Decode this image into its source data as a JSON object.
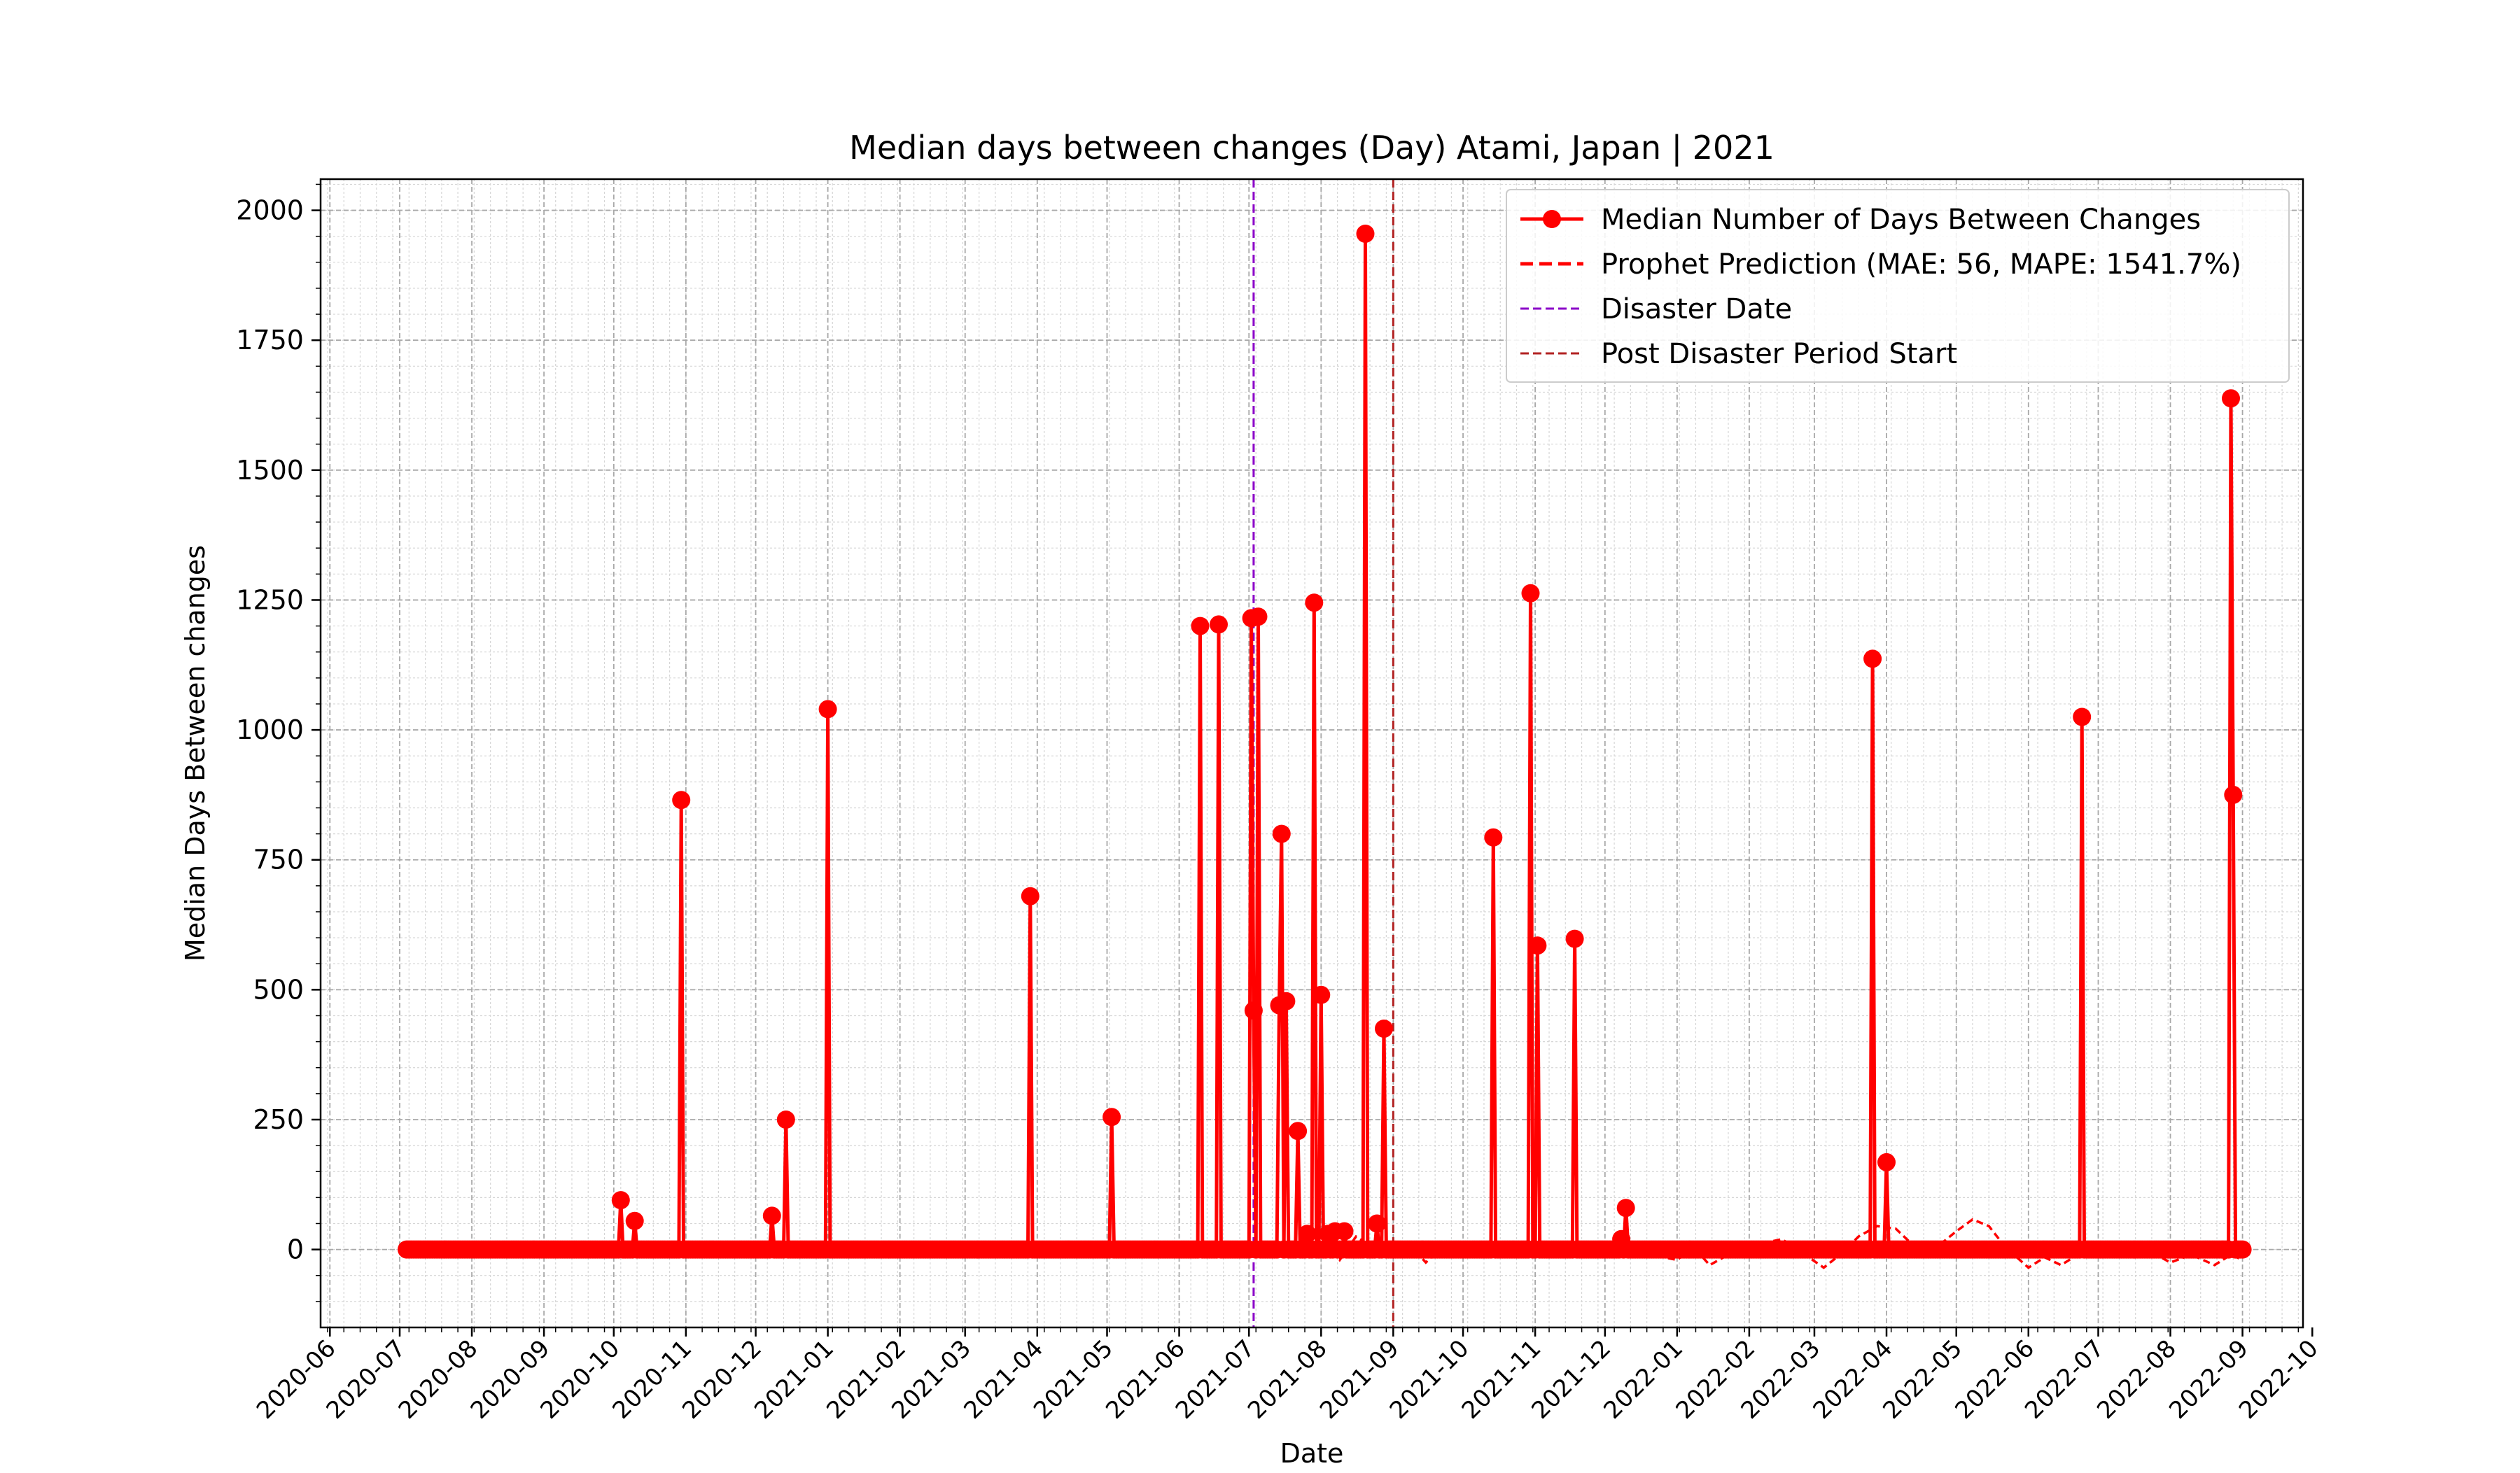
{
  "chart_data": {
    "type": "line",
    "title": "Median days between changes (Day) Atami, Japan | 2021",
    "xlabel": "Date",
    "ylabel": "Median Days Between changes",
    "xlim": [
      "2020-05-28",
      "2022-09-27"
    ],
    "ylim": [
      -150,
      2060
    ],
    "grid": true,
    "legend_position": "top-right",
    "x_ticks": [
      "2020-06",
      "2020-07",
      "2020-08",
      "2020-09",
      "2020-10",
      "2020-11",
      "2020-12",
      "2021-01",
      "2021-02",
      "2021-03",
      "2021-04",
      "2021-05",
      "2021-06",
      "2021-07",
      "2021-08",
      "2021-09",
      "2021-10",
      "2021-11",
      "2021-12",
      "2022-01",
      "2022-02",
      "2022-03",
      "2022-04",
      "2022-05",
      "2022-06",
      "2022-07",
      "2022-08",
      "2022-09",
      "2022-10"
    ],
    "y_ticks": [
      0,
      250,
      500,
      750,
      1000,
      1250,
      1500,
      1750,
      2000
    ],
    "colors": {
      "series": "#ff0000",
      "prediction": "#ff0000",
      "disaster": "#8b00c8",
      "post_disaster": "#b22222"
    },
    "date_range": {
      "start": "2020-07-04",
      "end": "2022-09-01",
      "baseline": 0
    },
    "series": [
      {
        "name": "Median Number of Days Between Changes",
        "style": "solid-with-markers",
        "spikes": [
          {
            "x": "2020-10-04",
            "y": 95
          },
          {
            "x": "2020-10-10",
            "y": 55
          },
          {
            "x": "2020-10-30",
            "y": 865
          },
          {
            "x": "2020-12-08",
            "y": 65
          },
          {
            "x": "2020-12-14",
            "y": 250
          },
          {
            "x": "2021-01-01",
            "y": 1040
          },
          {
            "x": "2021-03-29",
            "y": 680
          },
          {
            "x": "2021-05-03",
            "y": 255
          },
          {
            "x": "2021-06-10",
            "y": 1200
          },
          {
            "x": "2021-06-18",
            "y": 1203
          },
          {
            "x": "2021-07-02",
            "y": 1215
          },
          {
            "x": "2021-07-03",
            "y": 460
          },
          {
            "x": "2021-07-05",
            "y": 1218
          },
          {
            "x": "2021-07-14",
            "y": 470
          },
          {
            "x": "2021-07-15",
            "y": 800
          },
          {
            "x": "2021-07-17",
            "y": 478
          },
          {
            "x": "2021-07-22",
            "y": 228
          },
          {
            "x": "2021-07-26",
            "y": 30
          },
          {
            "x": "2021-07-29",
            "y": 1245
          },
          {
            "x": "2021-08-01",
            "y": 490
          },
          {
            "x": "2021-08-04",
            "y": 30
          },
          {
            "x": "2021-08-07",
            "y": 35
          },
          {
            "x": "2021-08-11",
            "y": 35
          },
          {
            "x": "2021-08-20",
            "y": 1955
          },
          {
            "x": "2021-08-25",
            "y": 50
          },
          {
            "x": "2021-08-28",
            "y": 425
          },
          {
            "x": "2021-10-14",
            "y": 793
          },
          {
            "x": "2021-10-30",
            "y": 1263
          },
          {
            "x": "2021-11-02",
            "y": 585
          },
          {
            "x": "2021-11-18",
            "y": 598
          },
          {
            "x": "2021-12-08",
            "y": 20
          },
          {
            "x": "2021-12-10",
            "y": 80
          },
          {
            "x": "2022-03-26",
            "y": 1137
          },
          {
            "x": "2022-04-01",
            "y": 168
          },
          {
            "x": "2022-06-24",
            "y": 1025
          },
          {
            "x": "2022-08-27",
            "y": 1638
          },
          {
            "x": "2022-08-28",
            "y": 875
          }
        ]
      },
      {
        "name": "Prophet Prediction (MAE: 56, MAPE: 1541.7%)",
        "style": "dashed",
        "points": [
          {
            "x": "2021-07-20",
            "y": 0
          },
          {
            "x": "2021-07-26",
            "y": 35
          },
          {
            "x": "2021-08-02",
            "y": 20
          },
          {
            "x": "2021-08-09",
            "y": -20
          },
          {
            "x": "2021-08-16",
            "y": 25
          },
          {
            "x": "2021-08-23",
            "y": 5
          },
          {
            "x": "2021-09-01",
            "y": -15
          },
          {
            "x": "2021-09-08",
            "y": 10
          },
          {
            "x": "2021-09-15",
            "y": -25
          },
          {
            "x": "2021-09-22",
            "y": 5
          },
          {
            "x": "2021-10-01",
            "y": -10
          },
          {
            "x": "2021-10-15",
            "y": 10
          },
          {
            "x": "2021-11-01",
            "y": 5
          },
          {
            "x": "2021-11-15",
            "y": 12
          },
          {
            "x": "2021-12-01",
            "y": 0
          },
          {
            "x": "2021-12-15",
            "y": -5
          },
          {
            "x": "2022-01-01",
            "y": -20
          },
          {
            "x": "2022-01-08",
            "y": 5
          },
          {
            "x": "2022-01-15",
            "y": -30
          },
          {
            "x": "2022-01-25",
            "y": -5
          },
          {
            "x": "2022-02-05",
            "y": 10
          },
          {
            "x": "2022-02-15",
            "y": 20
          },
          {
            "x": "2022-02-25",
            "y": -10
          },
          {
            "x": "2022-03-05",
            "y": -35
          },
          {
            "x": "2022-03-12",
            "y": -10
          },
          {
            "x": "2022-03-20",
            "y": 25
          },
          {
            "x": "2022-03-28",
            "y": 45
          },
          {
            "x": "2022-04-05",
            "y": 40
          },
          {
            "x": "2022-04-12",
            "y": 10
          },
          {
            "x": "2022-04-20",
            "y": -5
          },
          {
            "x": "2022-05-01",
            "y": 35
          },
          {
            "x": "2022-05-08",
            "y": 58
          },
          {
            "x": "2022-05-15",
            "y": 45
          },
          {
            "x": "2022-05-22",
            "y": 5
          },
          {
            "x": "2022-06-01",
            "y": -35
          },
          {
            "x": "2022-06-08",
            "y": -15
          },
          {
            "x": "2022-06-15",
            "y": -30
          },
          {
            "x": "2022-06-24",
            "y": -5
          },
          {
            "x": "2022-07-01",
            "y": 10
          },
          {
            "x": "2022-07-10",
            "y": -15
          },
          {
            "x": "2022-07-20",
            "y": 5
          },
          {
            "x": "2022-08-01",
            "y": -25
          },
          {
            "x": "2022-08-10",
            "y": -10
          },
          {
            "x": "2022-08-20",
            "y": -30
          },
          {
            "x": "2022-08-27",
            "y": -10
          },
          {
            "x": "2022-09-01",
            "y": -20
          }
        ]
      }
    ],
    "vlines": [
      {
        "name": "Disaster Date",
        "x": "2021-07-03",
        "style": "dashed",
        "color": "#8b00c8"
      },
      {
        "name": "Post Disaster Period Start",
        "x": "2021-09-01",
        "style": "dashed",
        "color": "#b22222"
      }
    ],
    "legend": [
      "Median Number of Days Between Changes",
      "Prophet Prediction (MAE: 56, MAPE: 1541.7%)",
      "Disaster Date",
      "Post Disaster Period Start"
    ]
  }
}
